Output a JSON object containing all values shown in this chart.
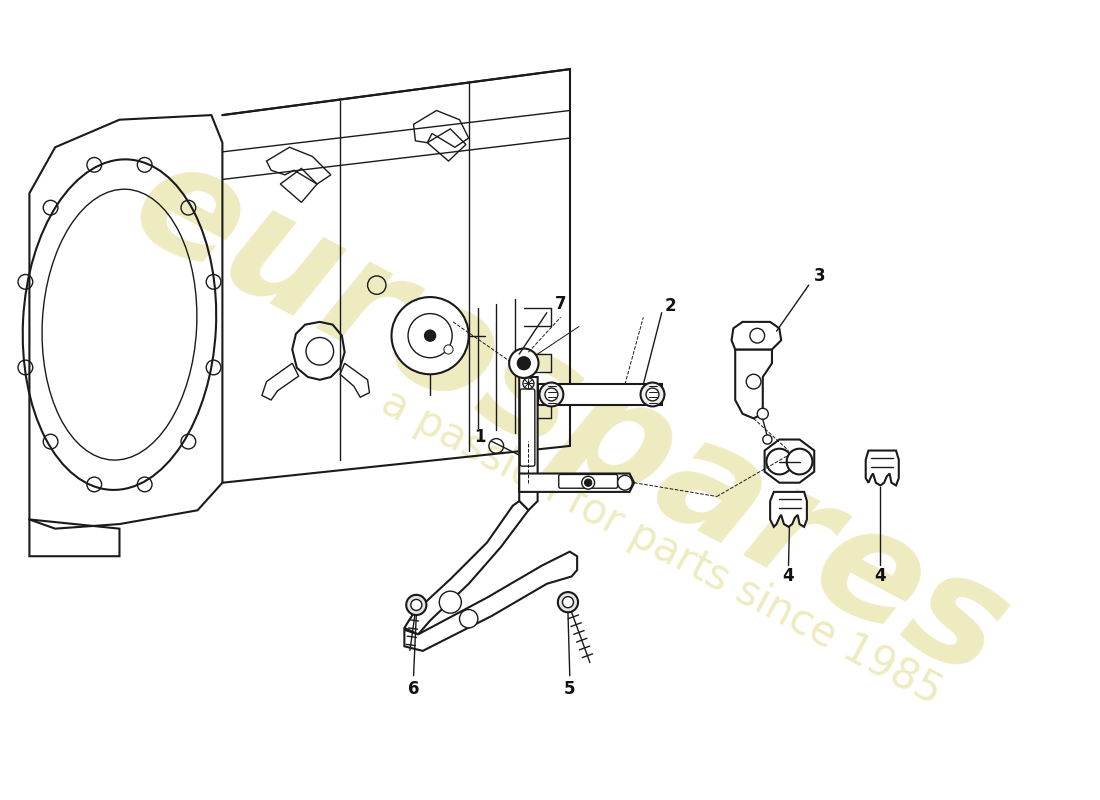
{
  "bg": "#ffffff",
  "lc": "#1a1a1a",
  "wm1": "eurospares",
  "wm2": "a passion for parts since 1985",
  "wmc": "#c8b820",
  "wm_alpha": 0.28,
  "figsize": [
    11.0,
    8.0
  ],
  "dpi": 100,
  "label_fs": 12,
  "label_color": "#111111"
}
